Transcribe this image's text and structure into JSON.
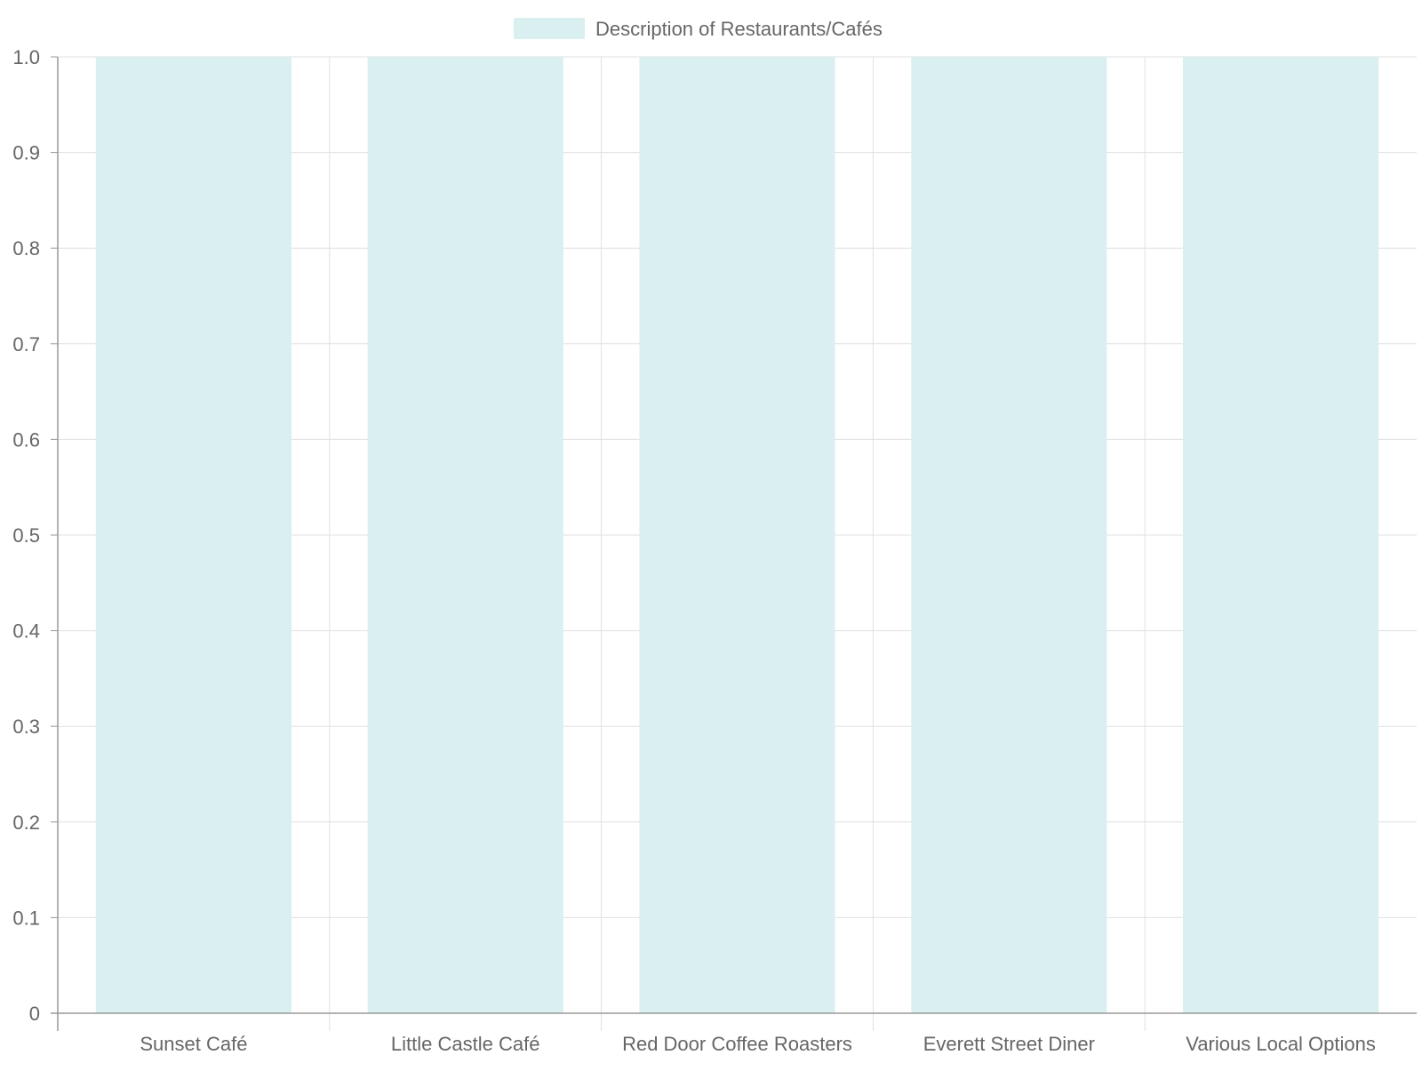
{
  "chart_data": {
    "type": "bar",
    "categories": [
      "Sunset Café",
      "Little Castle Café",
      "Red Door Coffee Roasters",
      "Everett Street Diner",
      "Various Local Options"
    ],
    "series": [
      {
        "name": "Description of Restaurants/Cafés",
        "values": [
          1,
          1,
          1,
          1,
          1
        ],
        "color": "#daf0f0"
      }
    ],
    "yticks": [
      "0",
      "0.1",
      "0.2",
      "0.3",
      "0.4",
      "0.5",
      "0.6",
      "0.7",
      "0.8",
      "0.9",
      "1.0"
    ],
    "ylim": [
      0,
      1
    ],
    "grid": true,
    "legend_position": "top-center",
    "colors": {
      "grid": "#e0e0e0",
      "axis": "#999999",
      "text": "#666666"
    }
  }
}
